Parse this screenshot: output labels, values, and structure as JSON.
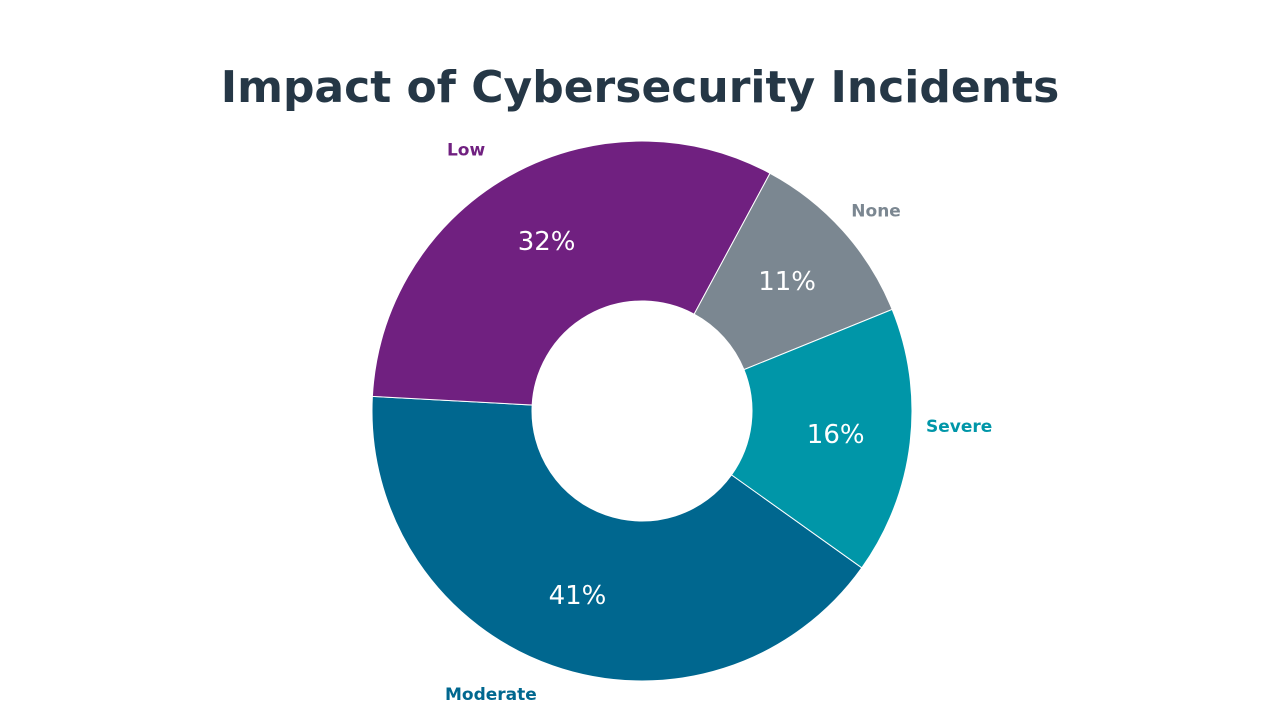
{
  "chart_data": {
    "type": "pie",
    "title": "Impact of Cybersecurity Incidents",
    "slices": [
      {
        "label": "Moderate",
        "value": 41,
        "value_label": "41%",
        "color": "#00678F"
      },
      {
        "label": "Low",
        "value": 32,
        "value_label": "32%",
        "color": "#702080"
      },
      {
        "label": "None",
        "value": 11,
        "value_label": "11%",
        "color": "#7B8791"
      },
      {
        "label": "Severe",
        "value": 16,
        "value_label": "16%",
        "color": "#0096A8"
      }
    ],
    "donut": true,
    "legend": "none"
  }
}
